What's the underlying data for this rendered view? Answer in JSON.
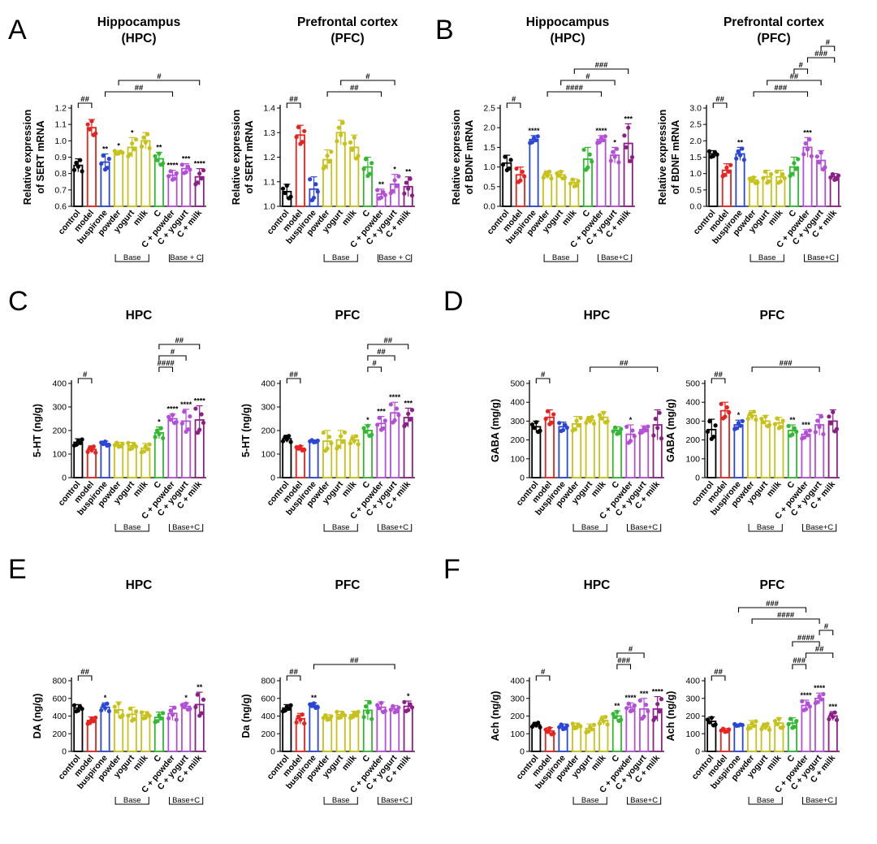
{
  "panel_letters": [
    "A",
    "B",
    "C",
    "D",
    "E",
    "F"
  ],
  "categories": [
    "control",
    "model",
    "buspirone",
    "powder",
    "yogurt",
    "milk",
    "C",
    "C + powder",
    "C + yogurt",
    "C + milk"
  ],
  "colors": [
    "#000000",
    "#e8231f",
    "#2a46d6",
    "#c7c21b",
    "#c7c21b",
    "#c7c21b",
    "#33b833",
    "#b34fd6",
    "#b34fd6",
    "#8b1f86"
  ],
  "group_labels": {
    "base": "Base",
    "base_c_a": "Base + C",
    "base_c": "Base+C"
  },
  "chart_data": [
    {
      "id": "A-HPC",
      "panel": "A",
      "type": "bar",
      "title": [
        "Hippocampus",
        "(HPC)"
      ],
      "ylabel": [
        "Relative expression",
        "of SERT mRNA"
      ],
      "ylim": [
        0.6,
        1.2
      ],
      "ticks": [
        "0.6",
        "0.7",
        "0.8",
        "0.9",
        "1.0",
        "1.1",
        "1.2"
      ],
      "values": [
        0.85,
        1.08,
        0.87,
        0.93,
        0.96,
        1.0,
        0.89,
        0.79,
        0.83,
        0.78
      ],
      "errors": [
        0.04,
        0.05,
        0.05,
        0.01,
        0.06,
        0.05,
        0.04,
        0.03,
        0.03,
        0.05
      ],
      "stars": [
        "",
        "",
        "**",
        "*",
        "*",
        "",
        "**",
        "****",
        "***",
        "****"
      ],
      "brackets": [
        {
          "from": 0,
          "to": 1,
          "label": "##"
        },
        {
          "from": 2,
          "to": 7,
          "label": "##"
        },
        {
          "from": 3,
          "to": 9,
          "label": "#"
        }
      ]
    },
    {
      "id": "A-PFC",
      "panel": "A",
      "type": "bar",
      "title": [
        "Prefrontal cortex",
        "(PFC)"
      ],
      "ylabel": [
        "Relative expression",
        "of SERT mRNA"
      ],
      "ylim": [
        1.0,
        1.4
      ],
      "ticks": [
        "1.0",
        "1.1",
        "1.2",
        "1.3",
        "1.4"
      ],
      "values": [
        1.06,
        1.29,
        1.07,
        1.19,
        1.3,
        1.24,
        1.16,
        1.05,
        1.09,
        1.08
      ],
      "errors": [
        0.03,
        0.04,
        0.05,
        0.04,
        0.05,
        0.05,
        0.04,
        0.02,
        0.04,
        0.04
      ],
      "stars": [
        "",
        "",
        "",
        "",
        "",
        "",
        "",
        "**",
        "*",
        "**"
      ],
      "brackets": [
        {
          "from": 0,
          "to": 1,
          "label": "##"
        },
        {
          "from": 3,
          "to": 7,
          "label": "##"
        },
        {
          "from": 4,
          "to": 8,
          "label": "#"
        }
      ]
    },
    {
      "id": "B-HPC",
      "panel": "B",
      "type": "bar",
      "title": [
        "Hippocampus",
        "(HPC)"
      ],
      "ylabel": [
        "Relative expression",
        "of BDNF mRNA"
      ],
      "ylim": [
        0.0,
        2.5
      ],
      "ticks": [
        "0.0",
        "0.5",
        "1.0",
        "1.5",
        "2.0",
        "2.5"
      ],
      "values": [
        1.1,
        0.8,
        1.7,
        0.8,
        0.8,
        0.6,
        1.2,
        1.7,
        1.3,
        1.6
      ],
      "errors": [
        0.2,
        0.2,
        0.1,
        0.1,
        0.1,
        0.1,
        0.3,
        0.1,
        0.2,
        0.5
      ],
      "stars": [
        "",
        "",
        "****",
        "",
        "",
        "",
        "",
        "****",
        "*",
        "***"
      ],
      "brackets": [
        {
          "from": 0,
          "to": 1,
          "label": "#"
        },
        {
          "from": 3,
          "to": 7,
          "label": "####"
        },
        {
          "from": 4,
          "to": 8,
          "label": "#"
        },
        {
          "from": 5,
          "to": 9,
          "label": "###"
        }
      ]
    },
    {
      "id": "B-PFC",
      "panel": "B",
      "type": "bar",
      "title": [
        "Prefrontal cortex",
        "(PFC)"
      ],
      "ylabel": [
        "Relative expression",
        "of BDNF mRNA"
      ],
      "ylim": [
        0.0,
        3.0
      ],
      "ticks": [
        "0.0",
        "0.5",
        "1.0",
        "1.5",
        "2.0",
        "2.5",
        "3.0"
      ],
      "values": [
        1.6,
        1.1,
        1.6,
        0.8,
        0.9,
        0.9,
        1.2,
        1.8,
        1.4,
        0.9
      ],
      "errors": [
        0.1,
        0.2,
        0.2,
        0.1,
        0.2,
        0.2,
        0.3,
        0.3,
        0.3,
        0.1
      ],
      "stars": [
        "",
        "",
        "**",
        "",
        "",
        "",
        "",
        "***",
        "",
        ""
      ],
      "brackets": [
        {
          "from": 0,
          "to": 1,
          "label": "##"
        },
        {
          "from": 3,
          "to": 7,
          "label": "###"
        },
        {
          "from": 4,
          "to": 8,
          "label": "##"
        },
        {
          "from": 6,
          "to": 7,
          "label": "#"
        },
        {
          "from": 7,
          "to": 9,
          "label": "###"
        },
        {
          "from": 8,
          "to": 9,
          "label": "#"
        }
      ]
    },
    {
      "id": "C-HPC",
      "panel": "C",
      "type": "bar",
      "title": [
        "HPC"
      ],
      "ylabel": [
        "5-HT (ng/g)"
      ],
      "ylim": [
        0,
        400
      ],
      "ticks": [
        "0",
        "100",
        "200",
        "300",
        "400"
      ],
      "values": [
        150,
        120,
        145,
        140,
        135,
        125,
        190,
        250,
        240,
        245
      ],
      "errors": [
        15,
        15,
        10,
        10,
        15,
        20,
        25,
        20,
        50,
        60
      ],
      "stars": [
        "",
        "",
        "",
        "",
        "",
        "",
        "*",
        "****",
        "****",
        "****"
      ],
      "brackets": [
        {
          "from": 0,
          "to": 1,
          "label": "#"
        },
        {
          "from": 6,
          "to": 7,
          "label": "####"
        },
        {
          "from": 6,
          "to": 8,
          "label": "#"
        },
        {
          "from": 6,
          "to": 9,
          "label": "##"
        }
      ]
    },
    {
      "id": "C-PFC",
      "panel": "C",
      "type": "bar",
      "title": [
        "PFC"
      ],
      "ylabel": [
        "5-HT (ng/g)"
      ],
      "ylim": [
        0,
        400
      ],
      "ticks": [
        "0",
        "100",
        "200",
        "300",
        "400"
      ],
      "values": [
        165,
        125,
        155,
        155,
        160,
        160,
        200,
        230,
        275,
        255
      ],
      "errors": [
        15,
        10,
        5,
        45,
        40,
        20,
        25,
        30,
        45,
        40
      ],
      "stars": [
        "",
        "",
        "",
        "",
        "",
        "",
        "*",
        "***",
        "****",
        "***"
      ],
      "brackets": [
        {
          "from": 0,
          "to": 1,
          "label": "##"
        },
        {
          "from": 6,
          "to": 7,
          "label": "#"
        },
        {
          "from": 6,
          "to": 8,
          "label": "##"
        },
        {
          "from": 6,
          "to": 9,
          "label": "##"
        }
      ]
    },
    {
      "id": "D-HPC",
      "panel": "D",
      "type": "bar",
      "title": [
        "HPC"
      ],
      "ylabel": [
        "GABA (mg/g)"
      ],
      "ylim": [
        0,
        500
      ],
      "ticks": [
        "0",
        "100",
        "200",
        "300",
        "400",
        "500"
      ],
      "values": [
        270,
        320,
        270,
        285,
        305,
        320,
        250,
        230,
        255,
        280
      ],
      "errors": [
        30,
        40,
        25,
        40,
        20,
        30,
        20,
        50,
        20,
        80
      ],
      "stars": [
        "",
        "",
        "",
        "",
        "",
        "",
        "",
        "*",
        "",
        ""
      ],
      "brackets": [
        {
          "from": 0,
          "to": 1,
          "label": "#"
        },
        {
          "from": 4,
          "to": 9,
          "label": "##"
        }
      ]
    },
    {
      "id": "D-PFC",
      "panel": "D",
      "type": "bar",
      "title": [
        "PFC"
      ],
      "ylabel": [
        "GABA (mg/g)"
      ],
      "ylim": [
        0,
        500
      ],
      "ticks": [
        "0",
        "100",
        "200",
        "300",
        "400",
        "500"
      ],
      "values": [
        255,
        355,
        280,
        330,
        300,
        290,
        250,
        230,
        280,
        300
      ],
      "errors": [
        55,
        45,
        25,
        25,
        30,
        30,
        30,
        25,
        55,
        60
      ],
      "stars": [
        "",
        "",
        "*",
        "",
        "",
        "",
        "**",
        "***",
        "",
        ""
      ],
      "brackets": [
        {
          "from": 0,
          "to": 1,
          "label": "##"
        },
        {
          "from": 3,
          "to": 8,
          "label": "###"
        }
      ]
    },
    {
      "id": "E-HPC",
      "panel": "E",
      "type": "bar",
      "title": [
        "HPC"
      ],
      "ylabel": [
        "DA (ng/g)"
      ],
      "ylim": [
        0,
        800
      ],
      "ticks": [
        "0",
        "200",
        "400",
        "600",
        "800"
      ],
      "values": [
        490,
        350,
        500,
        470,
        420,
        410,
        385,
        430,
        510,
        530
      ],
      "errors": [
        40,
        40,
        50,
        90,
        80,
        40,
        60,
        80,
        40,
        140
      ],
      "stars": [
        "",
        "",
        "*",
        "",
        "",
        "",
        "",
        "",
        "*",
        "**"
      ],
      "brackets": [
        {
          "from": 0,
          "to": 1,
          "label": "##"
        }
      ]
    },
    {
      "id": "E-PFC",
      "panel": "E",
      "type": "bar",
      "title": [
        "PFC"
      ],
      "ylabel": [
        "Da (ng/g)"
      ],
      "ylim": [
        0,
        800
      ],
      "ticks": [
        "0",
        "200",
        "400",
        "600",
        "800"
      ],
      "values": [
        490,
        370,
        520,
        385,
        415,
        415,
        465,
        500,
        480,
        510
      ],
      "errors": [
        40,
        60,
        30,
        30,
        40,
        40,
        110,
        60,
        40,
        60
      ],
      "stars": [
        "",
        "",
        "**",
        "",
        "",
        "",
        "",
        "",
        "",
        "*"
      ],
      "brackets": [
        {
          "from": 0,
          "to": 1,
          "label": "##"
        },
        {
          "from": 2,
          "to": 8,
          "label": "##"
        }
      ]
    },
    {
      "id": "F-HPC",
      "panel": "F",
      "type": "bar",
      "title": [
        "HPC"
      ],
      "ylabel": [
        "Ach (ng/g)"
      ],
      "ylim": [
        0,
        400
      ],
      "ticks": [
        "0",
        "100",
        "200",
        "300",
        "400"
      ],
      "values": [
        150,
        115,
        140,
        145,
        130,
        175,
        200,
        250,
        240,
        240
      ],
      "errors": [
        15,
        20,
        15,
        15,
        25,
        25,
        30,
        25,
        60,
        70
      ],
      "stars": [
        "",
        "",
        "",
        "",
        "",
        "",
        "**",
        "****",
        "***",
        "****"
      ],
      "brackets": [
        {
          "from": 0,
          "to": 1,
          "label": "#"
        },
        {
          "from": 6,
          "to": 7,
          "label": "###"
        },
        {
          "from": 6,
          "to": 8,
          "label": "#"
        }
      ]
    },
    {
      "id": "F-PFC",
      "panel": "F",
      "type": "bar",
      "title": [
        "PFC"
      ],
      "ylabel": [
        "Ach (ng/g)"
      ],
      "ylim": [
        0,
        400
      ],
      "ticks": [
        "0",
        "100",
        "200",
        "300",
        "400"
      ],
      "values": [
        170,
        120,
        150,
        150,
        140,
        160,
        160,
        260,
        300,
        200
      ],
      "errors": [
        25,
        10,
        5,
        25,
        20,
        30,
        30,
        30,
        30,
        25
      ],
      "stars": [
        "",
        "",
        "",
        "",
        "",
        "",
        "",
        "****",
        "****",
        "***"
      ],
      "brackets": [
        {
          "from": 0,
          "to": 1,
          "label": "##"
        },
        {
          "from": 6,
          "to": 7,
          "label": "###"
        },
        {
          "from": 7,
          "to": 9,
          "label": "##"
        },
        {
          "from": 6,
          "to": 8,
          "label": "####"
        },
        {
          "from": 8,
          "to": 9,
          "label": "#"
        },
        {
          "from": 3,
          "to": 8,
          "label": "####"
        },
        {
          "from": 2,
          "to": 7,
          "label": "###"
        }
      ]
    }
  ]
}
